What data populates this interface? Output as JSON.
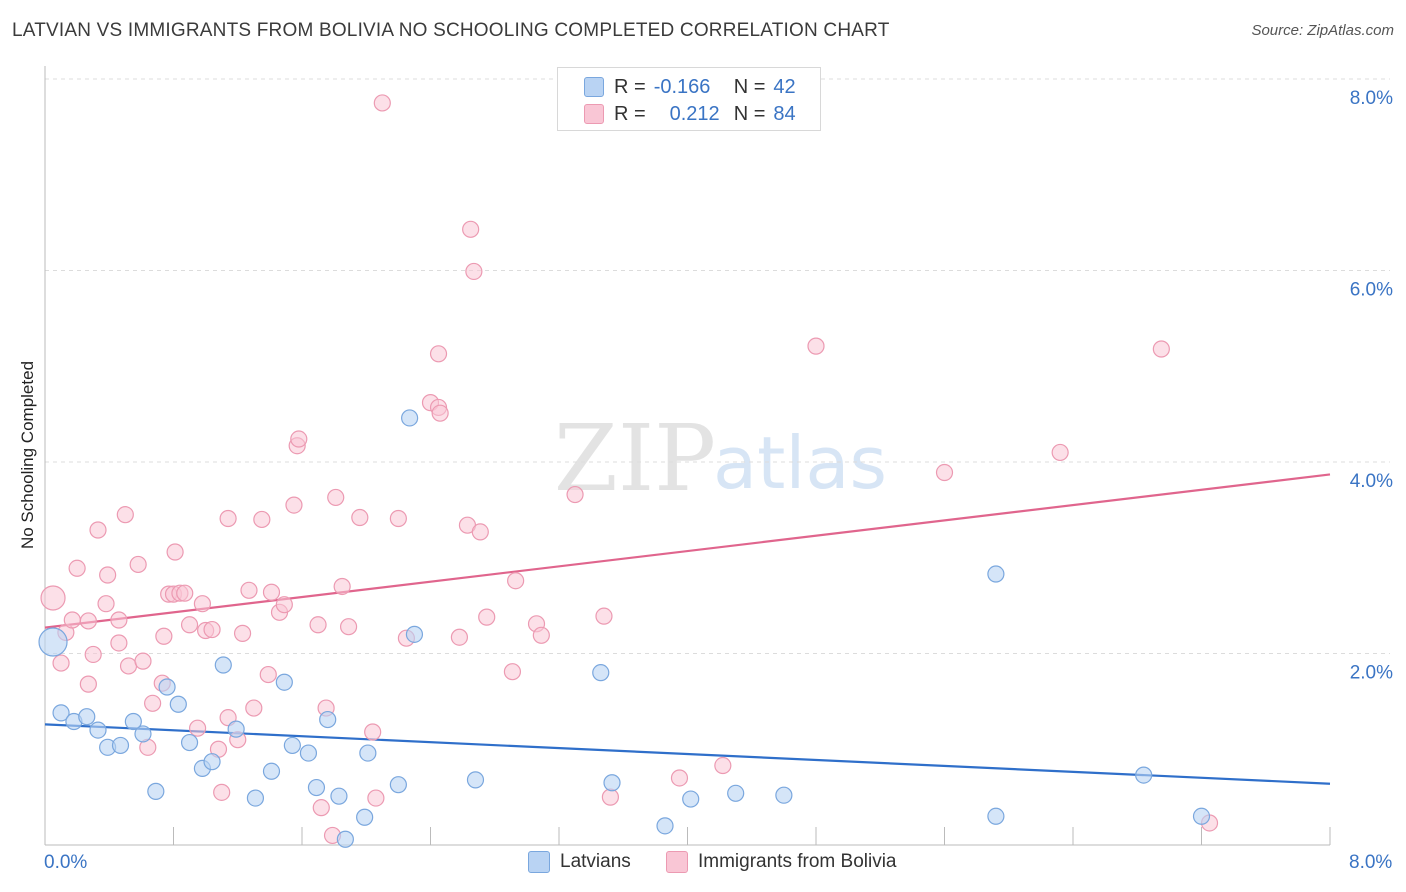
{
  "title": "LATVIAN VS IMMIGRANTS FROM BOLIVIA NO SCHOOLING COMPLETED CORRELATION CHART",
  "source": "Source: ZipAtlas.com",
  "watermark": {
    "zip": "ZIP",
    "atlas": "atlas"
  },
  "legend": {
    "r_label": "R =",
    "n_label": "N =",
    "series1": {
      "r": "-0.166",
      "n": "42"
    },
    "series2": {
      "r": "0.212",
      "n": "84"
    }
  },
  "bottom_legend": {
    "series1": "Latvians",
    "series2": "Immigrants from Bolivia"
  },
  "colors": {
    "latvians_fill": "#b9d3f3",
    "latvians_stroke": "#7aa7de",
    "latvians_line": "#2f6fca",
    "bolivia_fill": "#f9c6d5",
    "bolivia_stroke": "#ec9ab2",
    "bolivia_line": "#e0658d",
    "axis_text": "#3a74c4"
  },
  "chart_data": {
    "type": "scatter",
    "title": "LATVIAN VS IMMIGRANTS FROM BOLIVIA NO SCHOOLING COMPLETED CORRELATION CHART",
    "xlabel": "",
    "ylabel": "No Schooling Completed",
    "xlim": [
      0,
      8
    ],
    "ylim": [
      0,
      8
    ],
    "x_tick_labels": [
      "0.0%",
      "8.0%"
    ],
    "y_tick_labels": [
      "2.0%",
      "4.0%",
      "6.0%",
      "8.0%"
    ],
    "y_ticks": [
      2,
      4,
      6,
      8
    ],
    "grid": true,
    "legend_position": "top-center",
    "series": [
      {
        "name": "Latvians",
        "r": -0.166,
        "n": 42,
        "trend": {
          "x": [
            0,
            8
          ],
          "y": [
            1.26,
            0.64
          ]
        },
        "points": [
          {
            "x": 0.05,
            "y": 2.12,
            "big": true
          },
          {
            "x": 0.1,
            "y": 1.38
          },
          {
            "x": 0.18,
            "y": 1.29
          },
          {
            "x": 0.26,
            "y": 1.34
          },
          {
            "x": 0.33,
            "y": 1.2
          },
          {
            "x": 0.39,
            "y": 1.02
          },
          {
            "x": 0.47,
            "y": 1.04
          },
          {
            "x": 0.55,
            "y": 1.29
          },
          {
            "x": 0.61,
            "y": 1.16
          },
          {
            "x": 0.69,
            "y": 0.56
          },
          {
            "x": 0.76,
            "y": 1.65
          },
          {
            "x": 0.83,
            "y": 1.47
          },
          {
            "x": 0.9,
            "y": 1.07
          },
          {
            "x": 0.98,
            "y": 0.8
          },
          {
            "x": 1.04,
            "y": 0.87
          },
          {
            "x": 1.11,
            "y": 1.88
          },
          {
            "x": 1.19,
            "y": 1.21
          },
          {
            "x": 1.31,
            "y": 0.49
          },
          {
            "x": 1.41,
            "y": 0.77
          },
          {
            "x": 1.49,
            "y": 1.7
          },
          {
            "x": 1.54,
            "y": 1.04
          },
          {
            "x": 1.64,
            "y": 0.96
          },
          {
            "x": 1.69,
            "y": 0.6
          },
          {
            "x": 1.76,
            "y": 1.31
          },
          {
            "x": 1.83,
            "y": 0.51
          },
          {
            "x": 1.87,
            "y": 0.06
          },
          {
            "x": 1.99,
            "y": 0.29
          },
          {
            "x": 2.01,
            "y": 0.96
          },
          {
            "x": 2.2,
            "y": 0.63
          },
          {
            "x": 2.27,
            "y": 4.46
          },
          {
            "x": 2.3,
            "y": 2.2
          },
          {
            "x": 2.68,
            "y": 0.68
          },
          {
            "x": 3.46,
            "y": 1.8
          },
          {
            "x": 3.53,
            "y": 0.65
          },
          {
            "x": 3.86,
            "y": 0.2
          },
          {
            "x": 4.02,
            "y": 0.48
          },
          {
            "x": 4.3,
            "y": 0.54
          },
          {
            "x": 4.6,
            "y": 0.52
          },
          {
            "x": 5.92,
            "y": 2.83
          },
          {
            "x": 5.92,
            "y": 0.3
          },
          {
            "x": 6.84,
            "y": 0.73
          },
          {
            "x": 7.2,
            "y": 0.3
          }
        ]
      },
      {
        "name": "Immigrants from Bolivia",
        "r": 0.212,
        "n": 84,
        "trend": {
          "x": [
            0,
            8
          ],
          "y": [
            2.27,
            3.87
          ]
        },
        "points": [
          {
            "x": 0.05,
            "y": 2.58,
            "big": true
          },
          {
            "x": 0.1,
            "y": 1.9
          },
          {
            "x": 0.13,
            "y": 2.22
          },
          {
            "x": 0.17,
            "y": 2.35
          },
          {
            "x": 0.2,
            "y": 2.89
          },
          {
            "x": 0.27,
            "y": 2.34
          },
          {
            "x": 0.27,
            "y": 1.68
          },
          {
            "x": 0.3,
            "y": 1.99
          },
          {
            "x": 0.33,
            "y": 3.29
          },
          {
            "x": 0.38,
            "y": 2.52
          },
          {
            "x": 0.39,
            "y": 2.82
          },
          {
            "x": 0.46,
            "y": 2.35
          },
          {
            "x": 0.46,
            "y": 2.11
          },
          {
            "x": 0.5,
            "y": 3.45
          },
          {
            "x": 0.52,
            "y": 1.87
          },
          {
            "x": 0.58,
            "y": 2.93
          },
          {
            "x": 0.61,
            "y": 1.92
          },
          {
            "x": 0.64,
            "y": 1.02
          },
          {
            "x": 0.67,
            "y": 1.48
          },
          {
            "x": 0.73,
            "y": 1.69
          },
          {
            "x": 0.74,
            "y": 2.18
          },
          {
            "x": 0.77,
            "y": 2.62
          },
          {
            "x": 0.8,
            "y": 2.62
          },
          {
            "x": 0.81,
            "y": 3.06
          },
          {
            "x": 0.84,
            "y": 2.63
          },
          {
            "x": 0.87,
            "y": 2.63
          },
          {
            "x": 0.9,
            "y": 2.3
          },
          {
            "x": 0.95,
            "y": 1.22
          },
          {
            "x": 0.98,
            "y": 2.52
          },
          {
            "x": 1.0,
            "y": 2.24
          },
          {
            "x": 1.04,
            "y": 2.25
          },
          {
            "x": 1.08,
            "y": 1.0
          },
          {
            "x": 1.1,
            "y": 0.55
          },
          {
            "x": 1.14,
            "y": 3.41
          },
          {
            "x": 1.14,
            "y": 1.33
          },
          {
            "x": 1.2,
            "y": 1.1
          },
          {
            "x": 1.23,
            "y": 2.21
          },
          {
            "x": 1.27,
            "y": 2.66
          },
          {
            "x": 1.3,
            "y": 1.43
          },
          {
            "x": 1.35,
            "y": 3.4
          },
          {
            "x": 1.39,
            "y": 1.78
          },
          {
            "x": 1.41,
            "y": 2.64
          },
          {
            "x": 1.46,
            "y": 2.43
          },
          {
            "x": 1.49,
            "y": 2.51
          },
          {
            "x": 1.55,
            "y": 3.55
          },
          {
            "x": 1.57,
            "y": 4.17
          },
          {
            "x": 1.58,
            "y": 4.24
          },
          {
            "x": 1.7,
            "y": 2.3
          },
          {
            "x": 1.72,
            "y": 0.39
          },
          {
            "x": 1.75,
            "y": 1.43
          },
          {
            "x": 1.79,
            "y": 0.1
          },
          {
            "x": 1.81,
            "y": 3.63
          },
          {
            "x": 1.85,
            "y": 2.7
          },
          {
            "x": 1.89,
            "y": 2.28
          },
          {
            "x": 1.96,
            "y": 3.42
          },
          {
            "x": 2.04,
            "y": 1.18
          },
          {
            "x": 2.06,
            "y": 0.49
          },
          {
            "x": 2.1,
            "y": 7.75
          },
          {
            "x": 2.2,
            "y": 3.41
          },
          {
            "x": 2.25,
            "y": 2.16
          },
          {
            "x": 2.4,
            "y": 4.62
          },
          {
            "x": 2.45,
            "y": 5.13
          },
          {
            "x": 2.45,
            "y": 4.57
          },
          {
            "x": 2.46,
            "y": 4.51
          },
          {
            "x": 2.58,
            "y": 2.17
          },
          {
            "x": 2.63,
            "y": 3.34
          },
          {
            "x": 2.65,
            "y": 6.43
          },
          {
            "x": 2.67,
            "y": 5.99
          },
          {
            "x": 2.71,
            "y": 3.27
          },
          {
            "x": 2.75,
            "y": 2.38
          },
          {
            "x": 2.91,
            "y": 1.81
          },
          {
            "x": 2.93,
            "y": 2.76
          },
          {
            "x": 3.06,
            "y": 2.31
          },
          {
            "x": 3.09,
            "y": 2.19
          },
          {
            "x": 3.3,
            "y": 3.66
          },
          {
            "x": 3.48,
            "y": 2.39
          },
          {
            "x": 3.52,
            "y": 0.5
          },
          {
            "x": 3.95,
            "y": 0.7
          },
          {
            "x": 4.22,
            "y": 0.83
          },
          {
            "x": 4.8,
            "y": 5.21
          },
          {
            "x": 5.6,
            "y": 3.89
          },
          {
            "x": 6.32,
            "y": 4.1
          },
          {
            "x": 6.95,
            "y": 5.18
          },
          {
            "x": 7.25,
            "y": 0.23
          }
        ]
      }
    ]
  }
}
